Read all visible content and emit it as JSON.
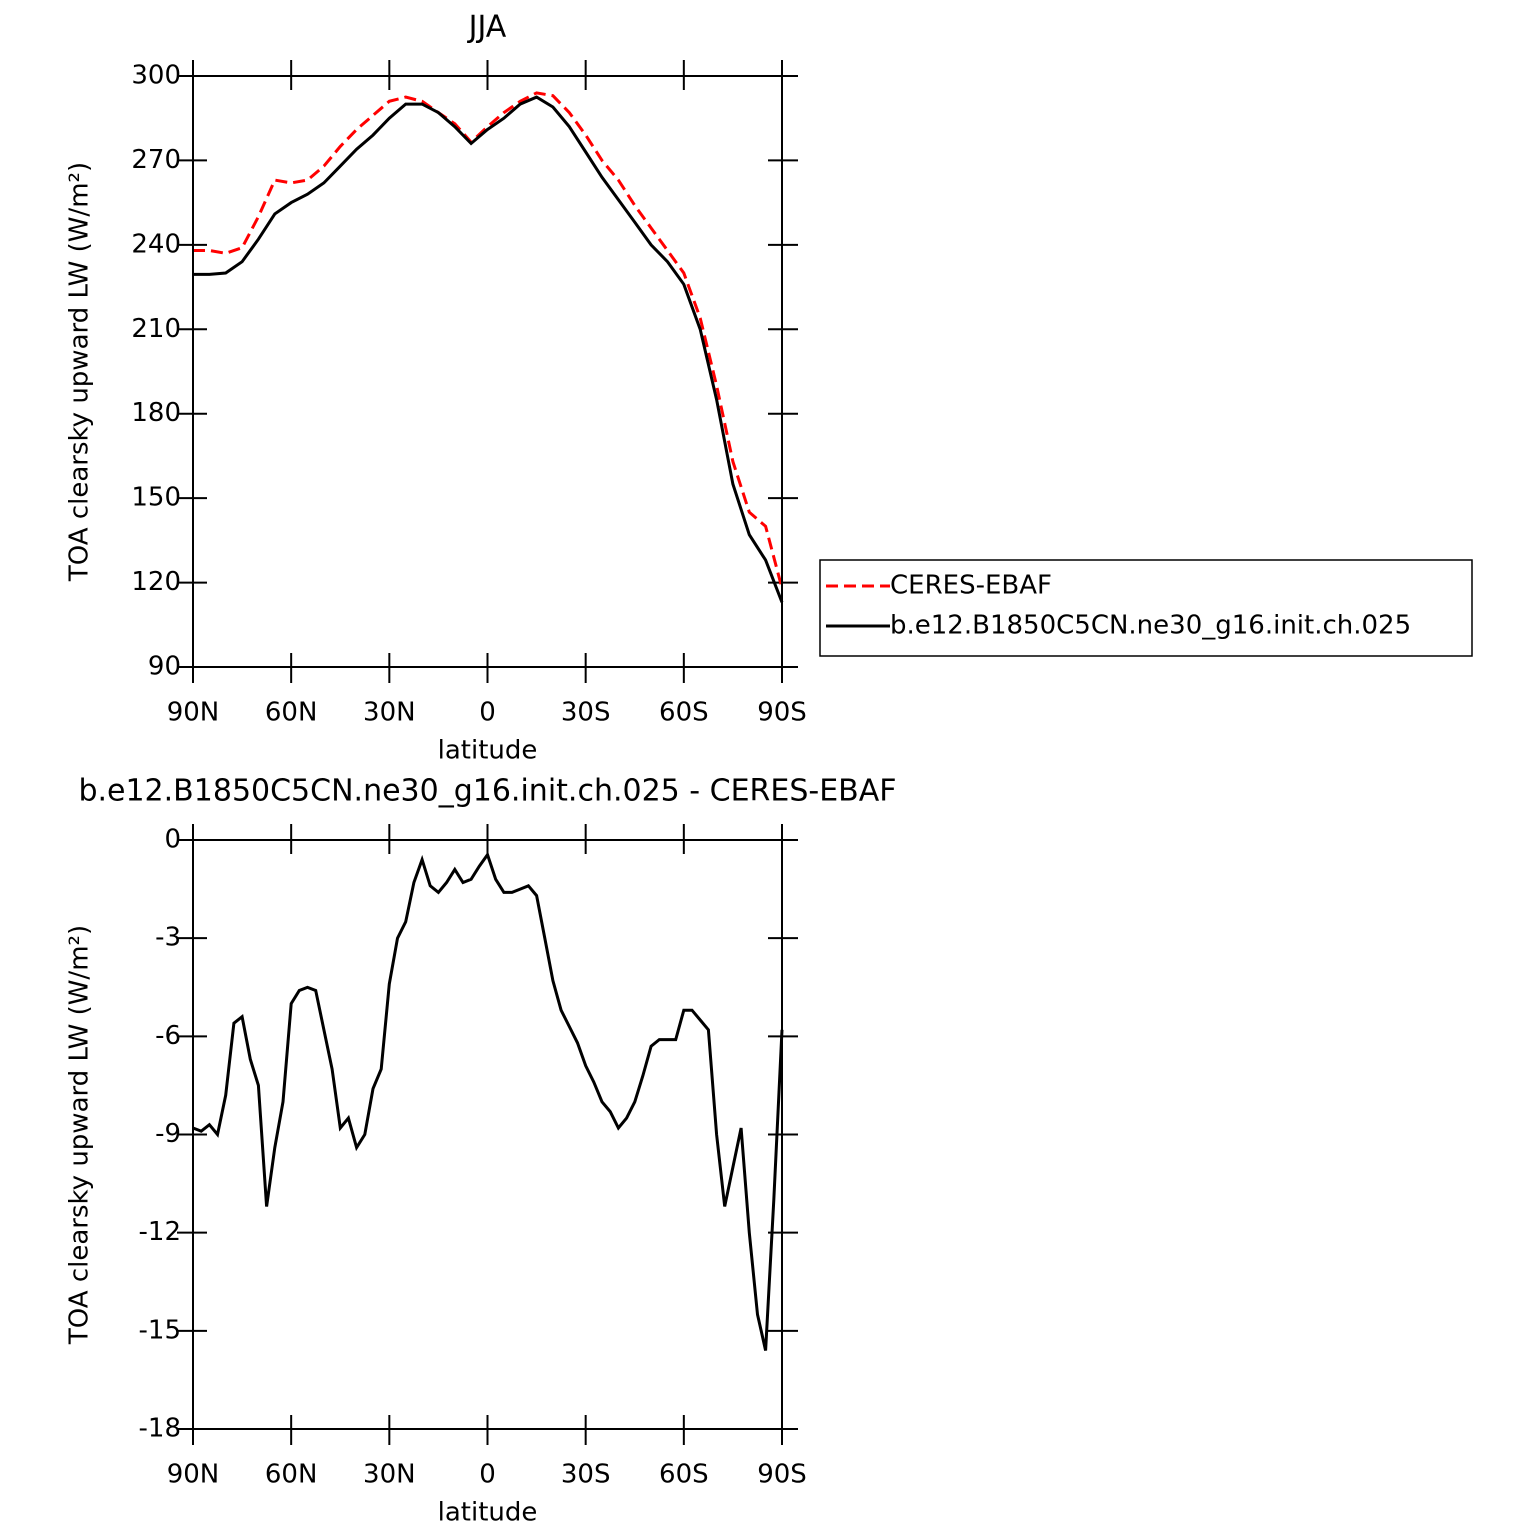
{
  "chart_data": [
    {
      "type": "line",
      "title": "JJA",
      "xlabel": "latitude",
      "ylabel": "TOA clearsky upward LW (W/m²)",
      "x": [
        90,
        85,
        80,
        75,
        70,
        65,
        60,
        55,
        50,
        45,
        40,
        35,
        30,
        25,
        20,
        15,
        10,
        5,
        0,
        -5,
        -10,
        -15,
        -20,
        -25,
        -30,
        -35,
        -40,
        -45,
        -50,
        -55,
        -60,
        -65,
        -70,
        -75,
        -80,
        -85,
        -90
      ],
      "xlim": [
        90,
        -90
      ],
      "xticks": [
        {
          "value": 90,
          "label": "90N"
        },
        {
          "value": 60,
          "label": "60N"
        },
        {
          "value": 30,
          "label": "30N"
        },
        0,
        {
          "value": -30,
          "label": "30S"
        },
        {
          "value": -60,
          "label": "60S"
        },
        {
          "value": -90,
          "label": "90S"
        }
      ],
      "ylim": [
        90,
        300
      ],
      "yticks": [
        90,
        120,
        150,
        180,
        210,
        240,
        270,
        300
      ],
      "legend": "outside-right",
      "series": [
        {
          "name": "CERES-EBAF",
          "color": "#ff0000",
          "style": "dashed",
          "values": [
            238,
            238,
            237,
            239,
            250,
            263,
            262,
            263,
            268,
            275,
            281,
            286,
            291,
            292.5,
            291,
            287,
            283,
            276.5,
            282,
            287,
            291,
            294,
            293,
            287,
            279,
            270,
            263,
            254,
            246,
            238,
            230,
            214,
            190,
            163,
            145,
            140,
            118
          ]
        },
        {
          "name": "b.e12.B1850C5CN.ne30_g16.init.ch.025",
          "color": "#000000",
          "style": "solid",
          "values": [
            229.5,
            229.5,
            230,
            234,
            242,
            251,
            255,
            258,
            262,
            268,
            274,
            279,
            285,
            290,
            290,
            287,
            282,
            276,
            281,
            285,
            290,
            292.5,
            289,
            282,
            273,
            264,
            256,
            248,
            240,
            234,
            226,
            210,
            185,
            155,
            137,
            128,
            113
          ]
        }
      ]
    },
    {
      "type": "line",
      "title": "b.e12.B1850C5CN.ne30_g16.init.ch.025 - CERES-EBAF",
      "xlabel": "latitude",
      "ylabel": "TOA clearsky upward LW (W/m²)",
      "x": [
        90,
        87.5,
        85,
        82.5,
        80,
        77.5,
        75,
        72.5,
        70,
        67.5,
        65,
        62.5,
        60,
        57.5,
        55,
        52.5,
        50,
        47.5,
        45,
        42.5,
        40,
        37.5,
        35,
        32.5,
        30,
        27.5,
        25,
        22.5,
        20,
        17.5,
        15,
        12.5,
        10,
        7.5,
        5,
        2.5,
        0,
        -2.5,
        -5,
        -7.5,
        -10,
        -12.5,
        -15,
        -17.5,
        -20,
        -22.5,
        -25,
        -27.5,
        -30,
        -32.5,
        -35,
        -37.5,
        -40,
        -42.5,
        -45,
        -47.5,
        -50,
        -52.5,
        -55,
        -57.5,
        -60,
        -62.5,
        -65,
        -67.5,
        -70,
        -72.5,
        -75,
        -77.5,
        -80,
        -82.5,
        -85,
        -87.5,
        -90
      ],
      "xlim": [
        90,
        -90
      ],
      "xticks": [
        {
          "value": 90,
          "label": "90N"
        },
        {
          "value": 60,
          "label": "60N"
        },
        {
          "value": 30,
          "label": "30N"
        },
        0,
        {
          "value": -30,
          "label": "30S"
        },
        {
          "value": -60,
          "label": "60S"
        },
        {
          "value": -90,
          "label": "90S"
        }
      ],
      "ylim": [
        -18,
        0
      ],
      "yticks": [
        -18,
        -15,
        -12,
        -9,
        -6,
        -3,
        0
      ],
      "series": [
        {
          "color": "#000000",
          "style": "solid",
          "values": [
            -8.8,
            -8.9,
            -8.7,
            -9.0,
            -7.8,
            -5.6,
            -5.4,
            -6.7,
            -7.5,
            -11.2,
            -9.4,
            -8.0,
            -5.0,
            -4.6,
            -4.5,
            -4.6,
            -5.8,
            -7.0,
            -8.8,
            -8.5,
            -9.4,
            -9.0,
            -7.6,
            -7.0,
            -4.4,
            -3.0,
            -2.5,
            -1.3,
            -0.6,
            -1.4,
            -1.6,
            -1.3,
            -0.9,
            -1.3,
            -1.2,
            -0.8,
            -0.45,
            -1.2,
            -1.6,
            -1.6,
            -1.5,
            -1.4,
            -1.7,
            -3.0,
            -4.3,
            -5.2,
            -5.7,
            -6.2,
            -6.9,
            -7.4,
            -8.0,
            -8.3,
            -8.8,
            -8.5,
            -8.0,
            -7.2,
            -6.3,
            -6.1,
            -6.1,
            -6.1,
            -5.2,
            -5.2,
            -5.5,
            -5.8,
            -9.0,
            -11.2,
            -10.0,
            -8.8,
            -12.0,
            -14.5,
            -15.6,
            -11.0,
            -5.8
          ]
        }
      ]
    }
  ]
}
